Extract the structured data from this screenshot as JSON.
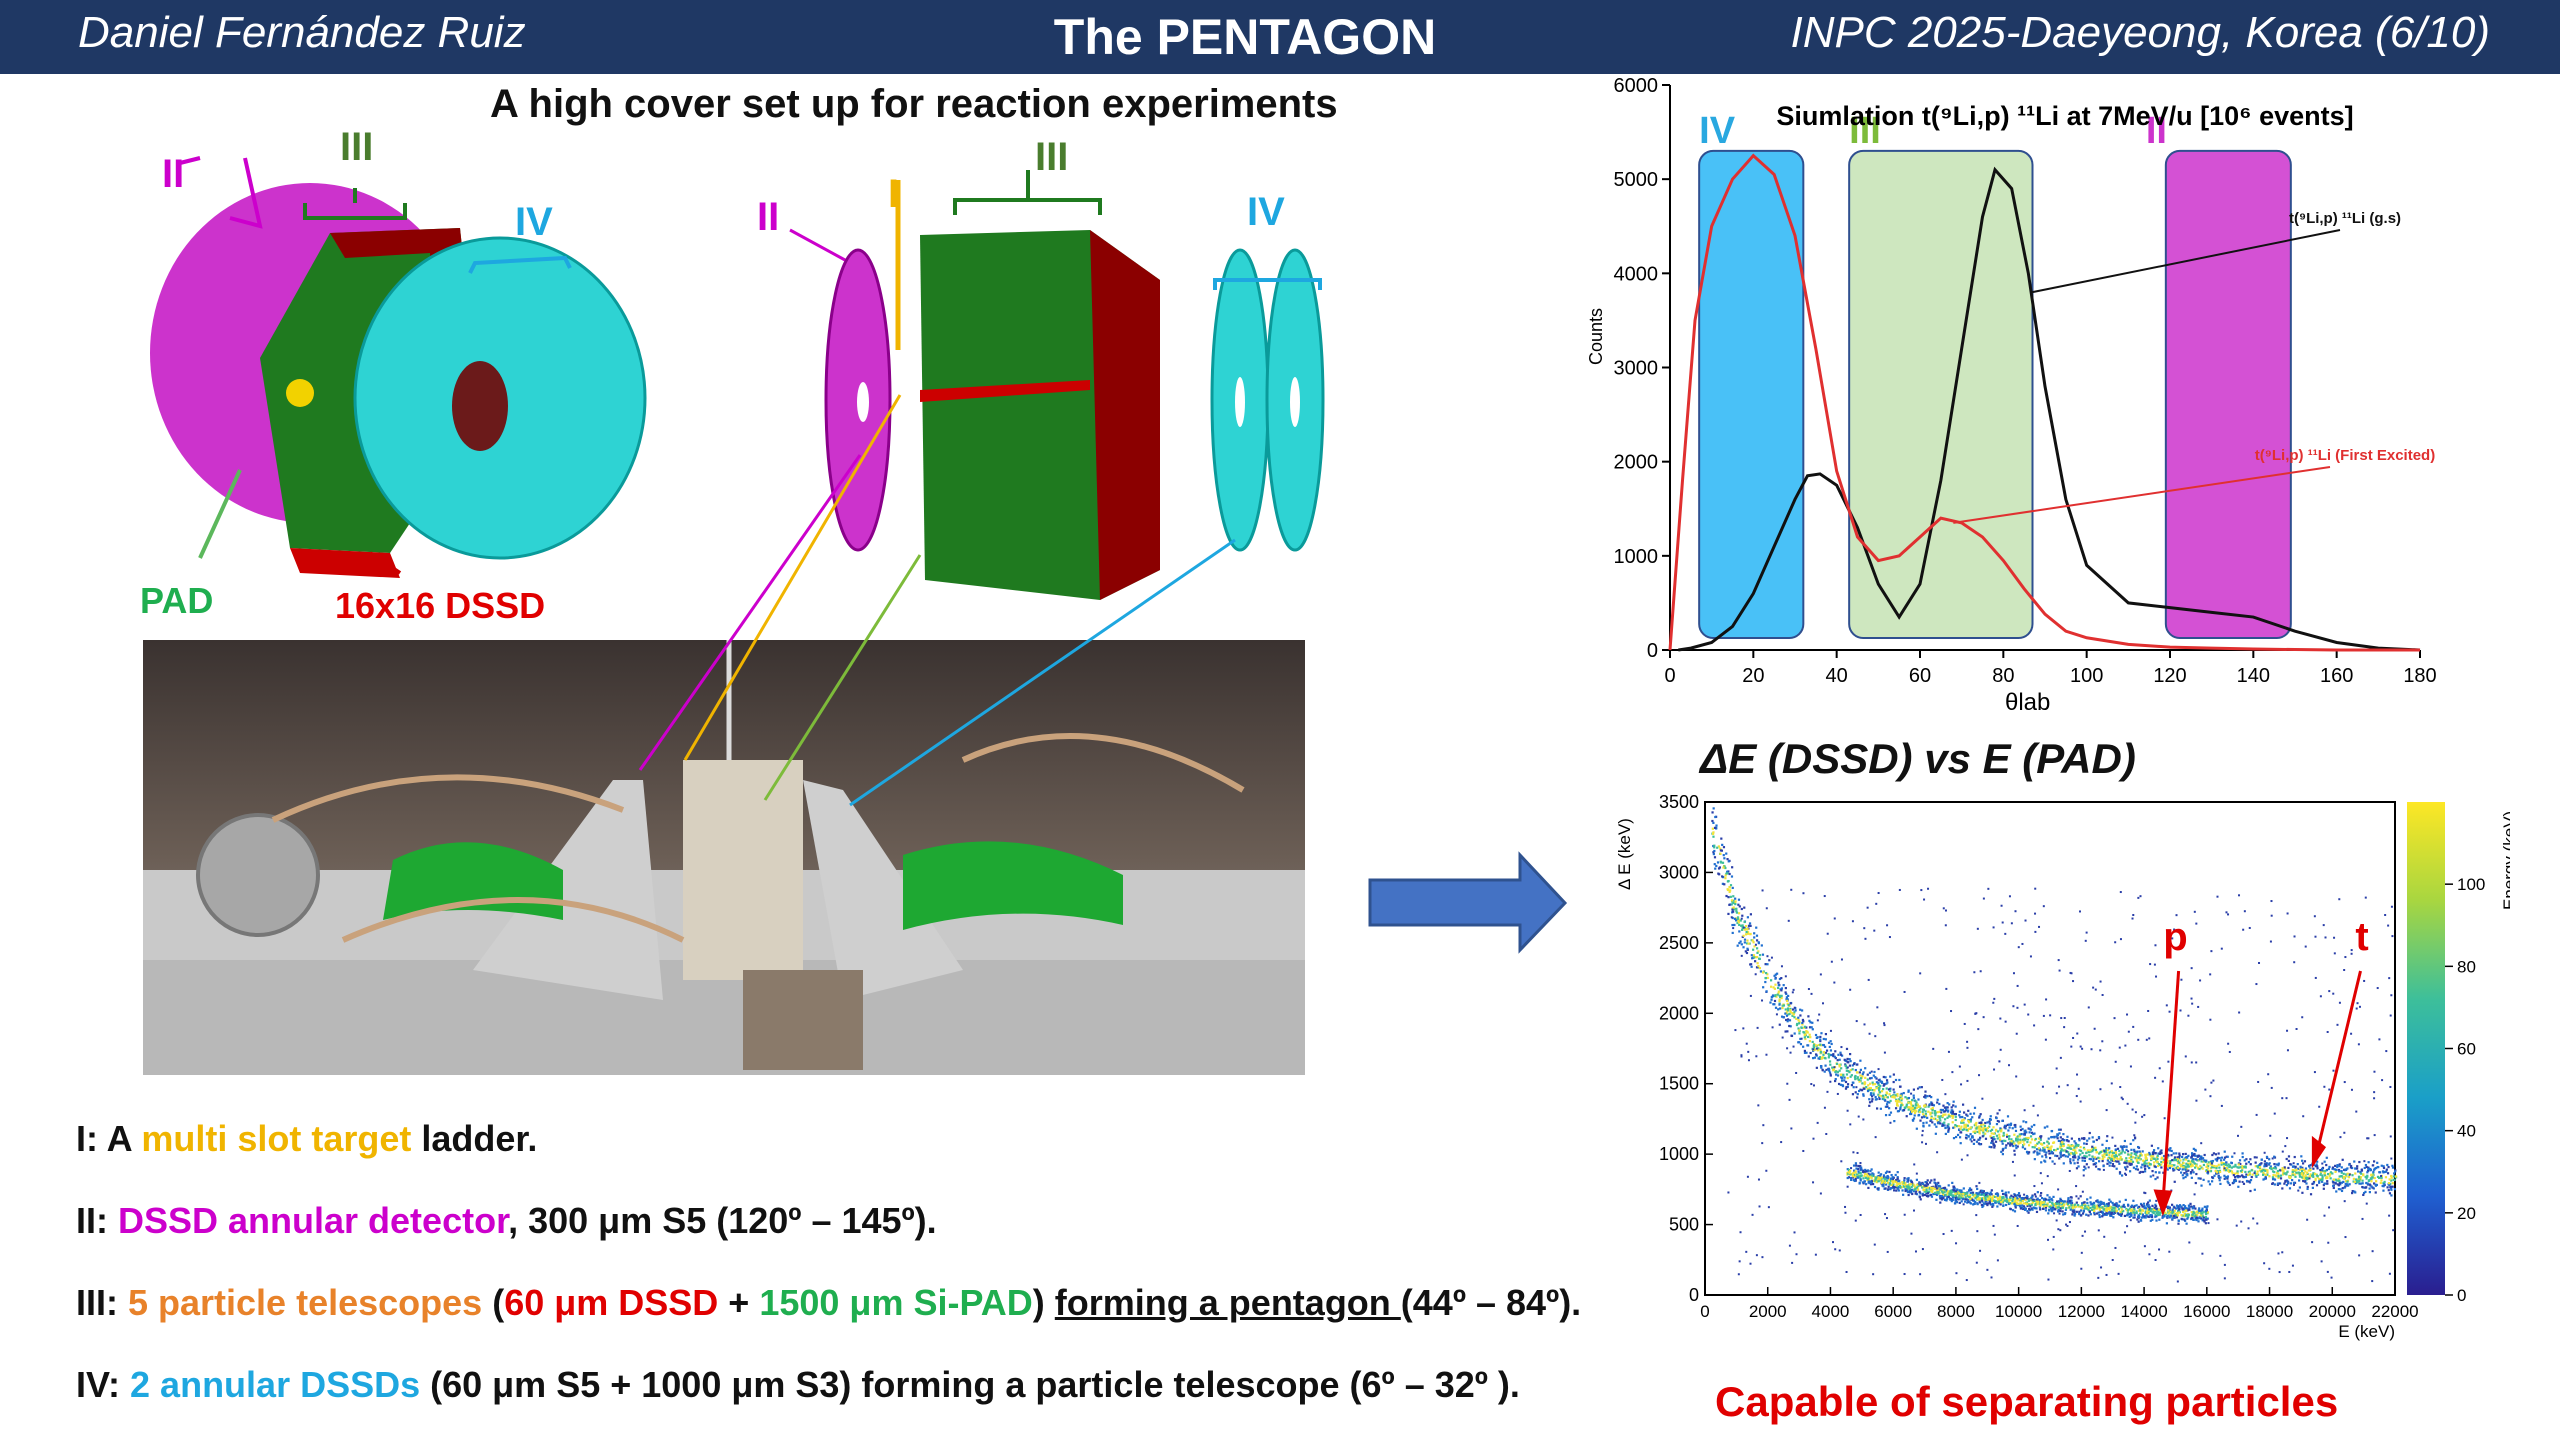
{
  "header": {
    "author": "Daniel Fernández Ruiz",
    "title": "The PENTAGON",
    "conference": "INPC 2025-Daeyeong, Korea   (6/10)"
  },
  "subtitle": "A high cover set up for reaction experiments",
  "diagram_labels": {
    "II": "II",
    "III": "III",
    "IV": "IV",
    "I": "I",
    "pad": "PAD",
    "dssd": "16x16 DSSD"
  },
  "bullets": {
    "b1": {
      "pre": "I: A ",
      "hl": "multi slot target",
      "post": " ladder."
    },
    "b2": {
      "pre": "II: ",
      "hl": "DSSD annular detector",
      "post": ", 300 μm S5 (120º – 145º)."
    },
    "b3": {
      "pre": "III: ",
      "hl1": "5 particle telescopes",
      "p1": " (",
      "hl2": "60 μm DSSD",
      "p2": " + ",
      "hl3": "1500 μm Si-PAD",
      "p3": ") ",
      "ul": "forming a pentagon ",
      "post": "(44º – 84º)."
    },
    "b4": {
      "pre": "IV: ",
      "hl": "2 annular DSSDs",
      "post": " (60 μm S5 + 1000 μm S3) forming a particle telescope  (6º – 32º )."
    }
  },
  "chart_data": [
    {
      "type": "line",
      "title": "Siumlation t(⁹Li,p) ¹¹Li at 7MeV/u [10⁶ events]",
      "xlabel": "θlab",
      "ylabel": "Counts",
      "xlim": [
        0,
        180
      ],
      "ylim": [
        0,
        6000
      ],
      "xticks": [
        0,
        20,
        40,
        60,
        80,
        100,
        120,
        140,
        160,
        180
      ],
      "yticks": [
        0,
        1000,
        2000,
        3000,
        4000,
        5000,
        6000
      ],
      "regions": [
        {
          "label": "IV",
          "x0": 7,
          "x1": 32,
          "color": "#29b6f6"
        },
        {
          "label": "III",
          "x0": 43,
          "x1": 87,
          "color": "#a5d48a"
        },
        {
          "label": "II",
          "x0": 119,
          "x1": 149,
          "color": "#cc33cc"
        }
      ],
      "series": [
        {
          "name": "t(⁹Li,p) ¹¹Li (g.s)",
          "color": "#111111",
          "x": [
            2,
            5,
            10,
            15,
            20,
            25,
            30,
            33,
            36,
            40,
            45,
            50,
            55,
            60,
            65,
            70,
            75,
            78,
            82,
            86,
            90,
            95,
            100,
            110,
            120,
            130,
            140,
            150,
            160,
            170,
            180
          ],
          "y": [
            0,
            20,
            80,
            250,
            600,
            1100,
            1600,
            1850,
            1870,
            1750,
            1300,
            700,
            350,
            700,
            1800,
            3200,
            4600,
            5100,
            4900,
            4000,
            2800,
            1600,
            900,
            500,
            450,
            400,
            350,
            200,
            80,
            20,
            0
          ]
        },
        {
          "name": "t(⁹Li,p) ¹¹Li (First Excited)",
          "color": "#e03030",
          "x": [
            0,
            3,
            6,
            10,
            15,
            20,
            25,
            30,
            35,
            40,
            45,
            50,
            55,
            60,
            65,
            70,
            75,
            80,
            85,
            90,
            95,
            100,
            110,
            120,
            130,
            140,
            150,
            160,
            170,
            180
          ],
          "y": [
            0,
            1800,
            3500,
            4500,
            5000,
            5250,
            5050,
            4400,
            3200,
            1900,
            1200,
            950,
            1000,
            1200,
            1400,
            1350,
            1200,
            950,
            650,
            380,
            200,
            130,
            60,
            30,
            20,
            10,
            5,
            0,
            0,
            0
          ]
        }
      ],
      "annotations": [
        "t(⁹Li,p) ¹¹Li (g.s)",
        "t(⁹Li,p) ¹¹Li (First Excited)"
      ]
    },
    {
      "type": "heatmap",
      "title": "ΔE (DSSD) vs E (PAD)",
      "xlabel": "E (keV)",
      "ylabel": "Δ E (keV)",
      "zlabel": "Energy (keV)",
      "xlim": [
        0,
        22000
      ],
      "ylim": [
        0,
        3500
      ],
      "xticks": [
        0,
        2000,
        4000,
        6000,
        8000,
        10000,
        12000,
        14000,
        16000,
        18000,
        20000,
        22000
      ],
      "yticks": [
        0,
        500,
        1000,
        1500,
        2000,
        2500,
        3000,
        3500
      ],
      "zticks": [
        0,
        20,
        40,
        60,
        80,
        100
      ],
      "bands": [
        {
          "label": "t",
          "x": [
            200,
            1000,
            2000,
            3000,
            4000,
            6000,
            8000,
            10000,
            12000,
            14000,
            16000,
            18000,
            20000,
            22000
          ],
          "y": [
            3300,
            2700,
            2250,
            1900,
            1650,
            1400,
            1230,
            1110,
            1030,
            970,
            920,
            880,
            850,
            830
          ]
        },
        {
          "label": "p",
          "x": [
            4500,
            6000,
            8000,
            10000,
            12000,
            14000,
            16000
          ],
          "y": [
            880,
            800,
            720,
            670,
            630,
            600,
            580
          ]
        }
      ],
      "labels": [
        "p",
        "t"
      ],
      "caption": "Capable of separating particles"
    }
  ]
}
